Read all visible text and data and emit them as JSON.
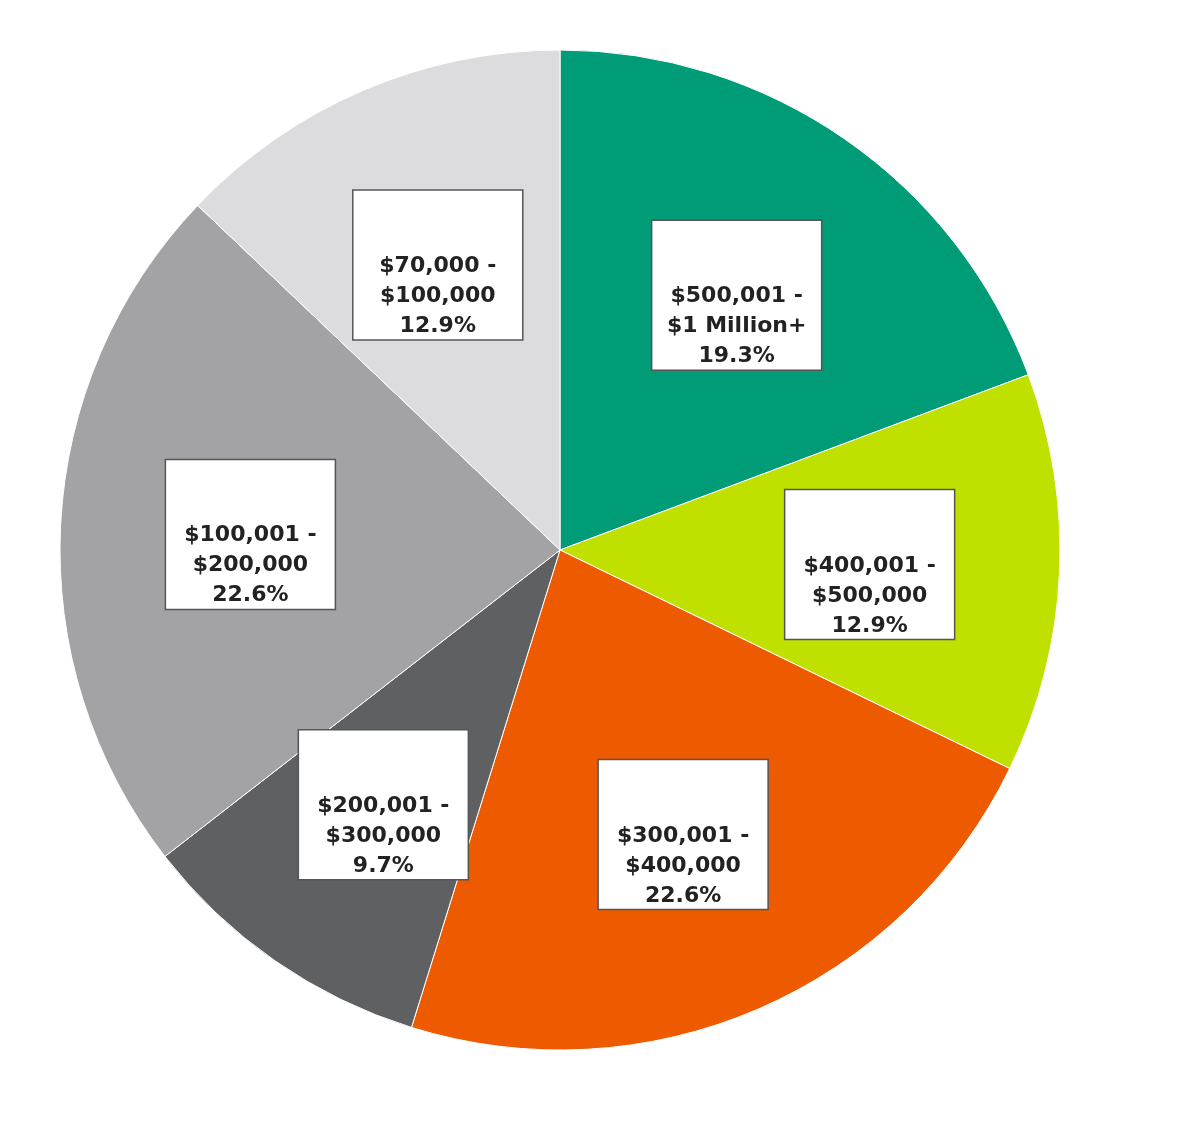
{
  "chart_data": {
    "type": "pie",
    "categories": [
      "$500,001 - $1 Million+",
      "$400,001 - $500,000",
      "$300,001 - $400,000",
      "$200,001 - $300,000",
      "$100,001 - $200,000",
      "$70,000 - $100,000"
    ],
    "values": [
      19.3,
      12.9,
      22.6,
      9.7,
      22.6,
      12.9
    ],
    "colors": [
      "#009b77",
      "#c0e000",
      "#ee5a00",
      "#5f6062",
      "#a3a3a5",
      "#dcdcde"
    ],
    "value_labels": [
      "19.3%",
      "12.9%",
      "22.6%",
      "9.7%",
      "22.6%",
      "12.9%"
    ],
    "legend": false
  }
}
